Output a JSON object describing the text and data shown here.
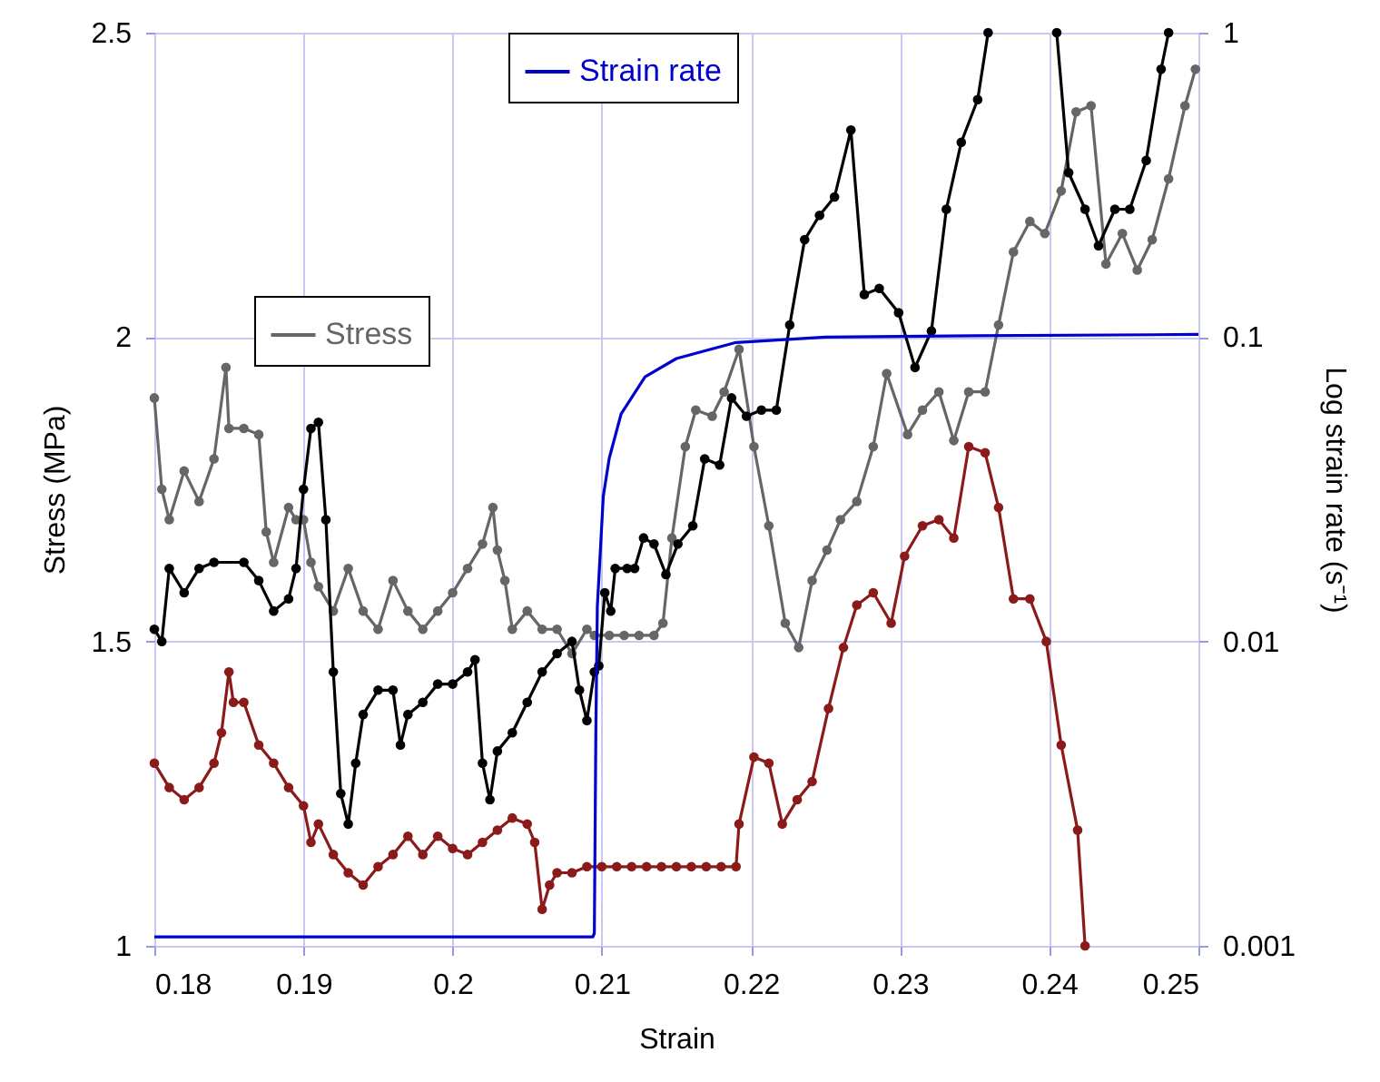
{
  "chart_data": {
    "type": "line",
    "xlabel": "Strain",
    "ylabel": "Stress (MPa)",
    "y2label": "Log strain rate (s⁻¹)",
    "xlim": [
      0.18,
      0.25
    ],
    "xticks": [
      0.18,
      0.19,
      0.2,
      0.21,
      0.22,
      0.23,
      0.24,
      0.25
    ],
    "ylim": [
      1,
      2.5
    ],
    "yticks": [
      1,
      1.5,
      2,
      2.5
    ],
    "y2lim": [
      0.001,
      1
    ],
    "y2ticks": [
      0.001,
      0.01,
      0.1,
      1
    ],
    "log": "y2",
    "grid": true,
    "legend": "top",
    "series": [
      {
        "name": "Stress",
        "color": "#666666",
        "marker": "circle",
        "x": [
          0.18,
          0.1805,
          0.181,
          0.182,
          0.183,
          0.184,
          0.1848,
          0.185,
          0.186,
          0.187,
          0.1875,
          0.188,
          0.189,
          0.1895,
          0.19,
          0.1905,
          0.191,
          0.192,
          0.193,
          0.194,
          0.195,
          0.196,
          0.197,
          0.198,
          0.199,
          0.2,
          0.201,
          0.202,
          0.2027,
          0.203,
          0.2035,
          0.204,
          0.205,
          0.206,
          0.207,
          0.208,
          0.209,
          0.2095,
          0.2105,
          0.2115,
          0.2125,
          0.2135,
          0.2141,
          0.2147,
          0.2156,
          0.2163,
          0.2174,
          0.2182,
          0.2192,
          0.2202,
          0.2212,
          0.2223,
          0.2232,
          0.2241,
          0.2251,
          0.226,
          0.2271,
          0.2282,
          0.2291,
          0.2305,
          0.2315,
          0.2326,
          0.2336,
          0.2346,
          0.2357,
          0.2366,
          0.2376,
          0.2387,
          0.2397,
          0.2408,
          0.2418,
          0.2428,
          0.2438,
          0.2449,
          0.2459,
          0.2469,
          0.248,
          0.2491,
          0.2498
        ],
        "values": [
          1.9,
          1.75,
          1.7,
          1.78,
          1.73,
          1.8,
          1.95,
          1.85,
          1.85,
          1.84,
          1.68,
          1.63,
          1.72,
          1.7,
          1.7,
          1.63,
          1.59,
          1.55,
          1.62,
          1.55,
          1.52,
          1.6,
          1.55,
          1.52,
          1.55,
          1.58,
          1.62,
          1.66,
          1.72,
          1.65,
          1.6,
          1.52,
          1.55,
          1.52,
          1.52,
          1.48,
          1.52,
          1.51,
          1.51,
          1.51,
          1.51,
          1.51,
          1.53,
          1.67,
          1.82,
          1.88,
          1.87,
          1.91,
          1.98,
          1.82,
          1.69,
          1.53,
          1.49,
          1.6,
          1.65,
          1.7,
          1.73,
          1.82,
          1.94,
          1.84,
          1.88,
          1.91,
          1.83,
          1.91,
          1.91,
          2.02,
          2.14,
          2.19,
          2.17,
          2.24,
          2.37,
          2.38,
          2.12,
          2.17,
          2.11,
          2.16,
          2.26,
          2.38,
          2.44
        ]
      },
      {
        "color": "#000000",
        "marker": "circle",
        "x": [
          0.18,
          0.1805,
          0.181,
          0.182,
          0.183,
          0.184,
          0.186,
          0.187,
          0.188,
          0.189,
          0.1895,
          0.19,
          0.1905,
          0.191,
          0.1915,
          0.192,
          0.1925,
          0.193,
          0.1935,
          0.194,
          0.195,
          0.196,
          0.1965,
          0.197,
          0.198,
          0.199,
          0.2,
          0.201,
          0.2015,
          0.202,
          0.2025,
          0.203,
          0.204,
          0.205,
          0.206,
          0.207,
          0.208,
          0.2085,
          0.209,
          0.2095,
          0.2098,
          0.2102,
          0.2106,
          0.2109,
          0.2117,
          0.2122,
          0.2128,
          0.2135,
          0.2143,
          0.2151,
          0.2161,
          0.2169,
          0.2179,
          0.2187,
          0.2197,
          0.2207,
          0.2217,
          0.2226,
          0.2236,
          0.2246,
          0.2256,
          0.2267,
          0.2276,
          0.2286,
          0.2299,
          0.231,
          0.2321,
          0.2331,
          0.2341,
          0.2352,
          0.2359,
          0.238,
          0.2405,
          0.2413,
          0.2424,
          0.2433,
          0.2444,
          0.2454,
          0.2465,
          0.2475,
          0.248
        ],
        "values": [
          1.52,
          1.5,
          1.62,
          1.58,
          1.62,
          1.63,
          1.63,
          1.6,
          1.55,
          1.57,
          1.62,
          1.75,
          1.85,
          1.86,
          1.7,
          1.45,
          1.25,
          1.2,
          1.3,
          1.38,
          1.42,
          1.42,
          1.33,
          1.38,
          1.4,
          1.43,
          1.43,
          1.45,
          1.47,
          1.3,
          1.24,
          1.32,
          1.35,
          1.4,
          1.45,
          1.48,
          1.5,
          1.42,
          1.37,
          1.45,
          1.46,
          1.58,
          1.55,
          1.62,
          1.62,
          1.62,
          1.67,
          1.66,
          1.61,
          1.66,
          1.69,
          1.8,
          1.79,
          1.9,
          1.87,
          1.88,
          1.88,
          2.02,
          2.16,
          2.2,
          2.23,
          2.34,
          2.07,
          2.08,
          2.04,
          1.95,
          2.01,
          2.21,
          2.32,
          2.39,
          2.5,
          null,
          2.5,
          2.27,
          2.21,
          2.15,
          2.21,
          2.21,
          2.29,
          2.44,
          2.5
        ]
      },
      {
        "color": "#8b1a1a",
        "marker": "circle",
        "x": [
          0.18,
          0.181,
          0.182,
          0.183,
          0.184,
          0.1845,
          0.185,
          0.1853,
          0.186,
          0.187,
          0.188,
          0.189,
          0.19,
          0.1905,
          0.191,
          0.192,
          0.193,
          0.194,
          0.195,
          0.196,
          0.197,
          0.198,
          0.199,
          0.2,
          0.201,
          0.202,
          0.203,
          0.204,
          0.205,
          0.2055,
          0.206,
          0.2065,
          0.207,
          0.208,
          0.209,
          0.21,
          0.211,
          0.212,
          0.213,
          0.214,
          0.215,
          0.216,
          0.217,
          0.218,
          0.219,
          0.2192,
          0.2202,
          0.2212,
          0.2221,
          0.2231,
          0.2241,
          0.2252,
          0.2262,
          0.2271,
          0.2282,
          0.2294,
          0.2303,
          0.2315,
          0.2326,
          0.2336,
          0.2346,
          0.2357,
          0.2366,
          0.2376,
          0.2387,
          0.2398,
          0.2408,
          0.2419,
          0.2424
        ],
        "values": [
          1.3,
          1.26,
          1.24,
          1.26,
          1.3,
          1.35,
          1.45,
          1.4,
          1.4,
          1.33,
          1.3,
          1.26,
          1.23,
          1.17,
          1.2,
          1.15,
          1.12,
          1.1,
          1.13,
          1.15,
          1.18,
          1.15,
          1.18,
          1.16,
          1.15,
          1.17,
          1.19,
          1.21,
          1.2,
          1.17,
          1.06,
          1.1,
          1.12,
          1.12,
          1.13,
          1.13,
          1.13,
          1.13,
          1.13,
          1.13,
          1.13,
          1.13,
          1.13,
          1.13,
          1.13,
          1.2,
          1.31,
          1.3,
          1.2,
          1.24,
          1.27,
          1.39,
          1.49,
          1.56,
          1.58,
          1.53,
          1.64,
          1.69,
          1.7,
          1.67,
          1.82,
          1.81,
          1.72,
          1.57,
          1.57,
          1.5,
          1.33,
          1.19,
          1.0
        ]
      },
      {
        "name": "Strain rate",
        "color": "#0000cc",
        "marker": "none",
        "axis": "y2",
        "x": [
          0.18,
          0.2094,
          0.2095,
          0.2096,
          0.2097,
          0.2101,
          0.2105,
          0.2113,
          0.2129,
          0.215,
          0.219,
          0.225,
          0.235,
          0.25
        ],
        "values": [
          0.00107,
          0.00107,
          0.0011,
          0.005,
          0.013,
          0.03,
          0.04,
          0.056,
          0.074,
          0.085,
          0.096,
          0.1,
          0.101,
          0.102
        ]
      }
    ]
  }
}
